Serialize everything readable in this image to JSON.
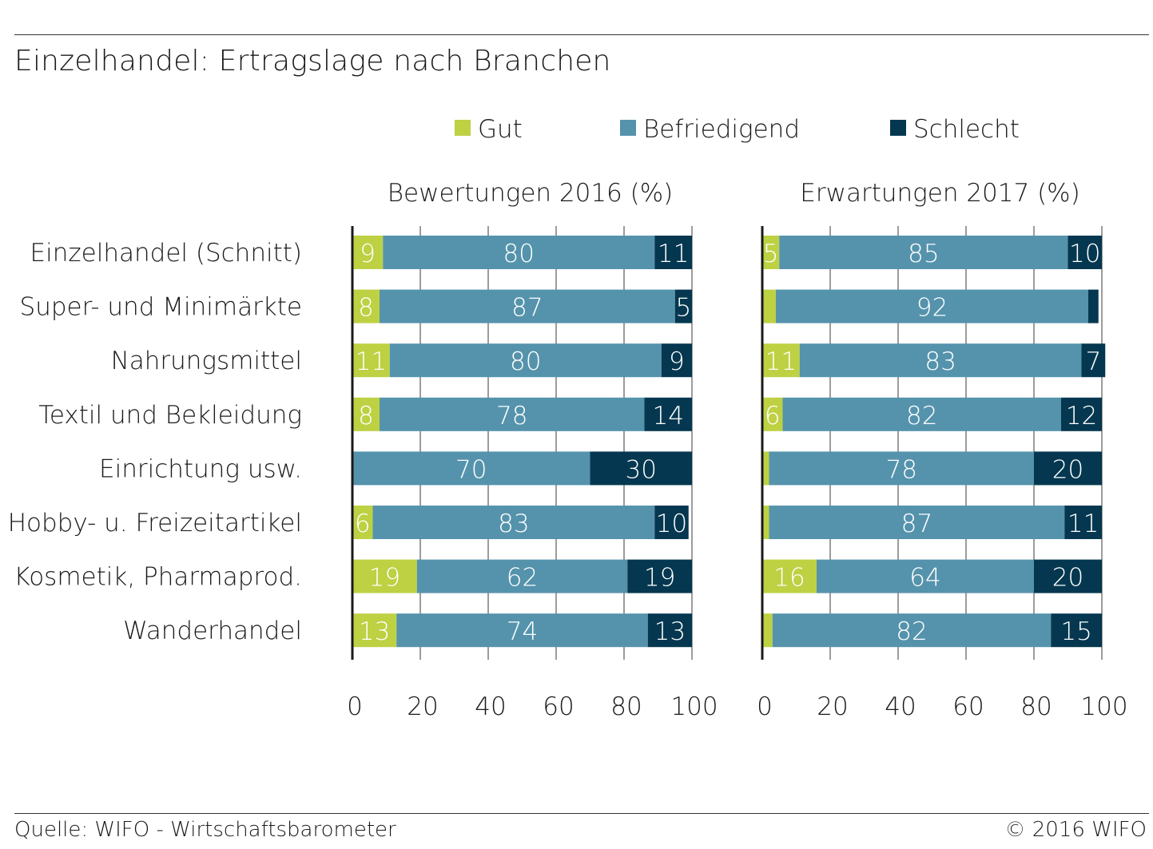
{
  "title": "Einzelhandel: Ertragslage nach Branchen",
  "footer": {
    "source": "Quelle: WIFO - Wirtschaftsbarometer",
    "copyright": "© 2016 WIFO"
  },
  "colors": {
    "gut": "#bdd143",
    "befriedigend": "#5593ac",
    "schlecht": "#053850"
  },
  "chart_data": {
    "type": "bar",
    "orientation": "horizontal",
    "stacked": true,
    "grid": true,
    "legend_position": "top",
    "categories": [
      "Einzelhandel (Schnitt)",
      "Super- und Minimärkte",
      "Nahrungsmittel",
      "Textil und Bekleidung",
      "Einrichtung usw.",
      "Hobby- u. Freizeitartikel",
      "Kosmetik, Pharmaprod.",
      "Wanderhandel"
    ],
    "legend": [
      "Gut",
      "Befriedigend",
      "Schlecht"
    ],
    "xlim": [
      0,
      100
    ],
    "xticks": [
      0,
      20,
      40,
      60,
      80,
      100
    ],
    "panels": [
      {
        "subtitle": "Bewertungen 2016 (%)",
        "series": [
          {
            "name": "Gut",
            "values": [
              9,
              8,
              11,
              8,
              0,
              6,
              19,
              13
            ],
            "labels": [
              "9",
              "8",
              "11",
              "8",
              "",
              "6",
              "19",
              "13"
            ]
          },
          {
            "name": "Befriedigend",
            "values": [
              80,
              87,
              80,
              78,
              70,
              83,
              62,
              74
            ],
            "labels": [
              "80",
              "87",
              "80",
              "78",
              "70",
              "83",
              "62",
              "74"
            ]
          },
          {
            "name": "Schlecht",
            "values": [
              11,
              5,
              9,
              14,
              30,
              10,
              19,
              13
            ],
            "labels": [
              "11",
              "5",
              "9",
              "14",
              "30",
              "10",
              "19",
              "13"
            ]
          }
        ]
      },
      {
        "subtitle": "Erwartungen 2017 (%)",
        "series": [
          {
            "name": "Gut",
            "values": [
              5,
              4,
              11,
              6,
              2,
              2,
              16,
              3
            ],
            "labels": [
              "5",
              "",
              "11",
              "6",
              "",
              "",
              "16",
              ""
            ]
          },
          {
            "name": "Befriedigend",
            "values": [
              85,
              92,
              83,
              82,
              78,
              87,
              64,
              82
            ],
            "labels": [
              "85",
              "92",
              "83",
              "82",
              "78",
              "87",
              "64",
              "82"
            ]
          },
          {
            "name": "Schlecht",
            "values": [
              10,
              3,
              7,
              12,
              20,
              11,
              20,
              15
            ],
            "labels": [
              "10",
              "",
              "7",
              "12",
              "20",
              "11",
              "20",
              "15"
            ]
          }
        ]
      }
    ]
  }
}
